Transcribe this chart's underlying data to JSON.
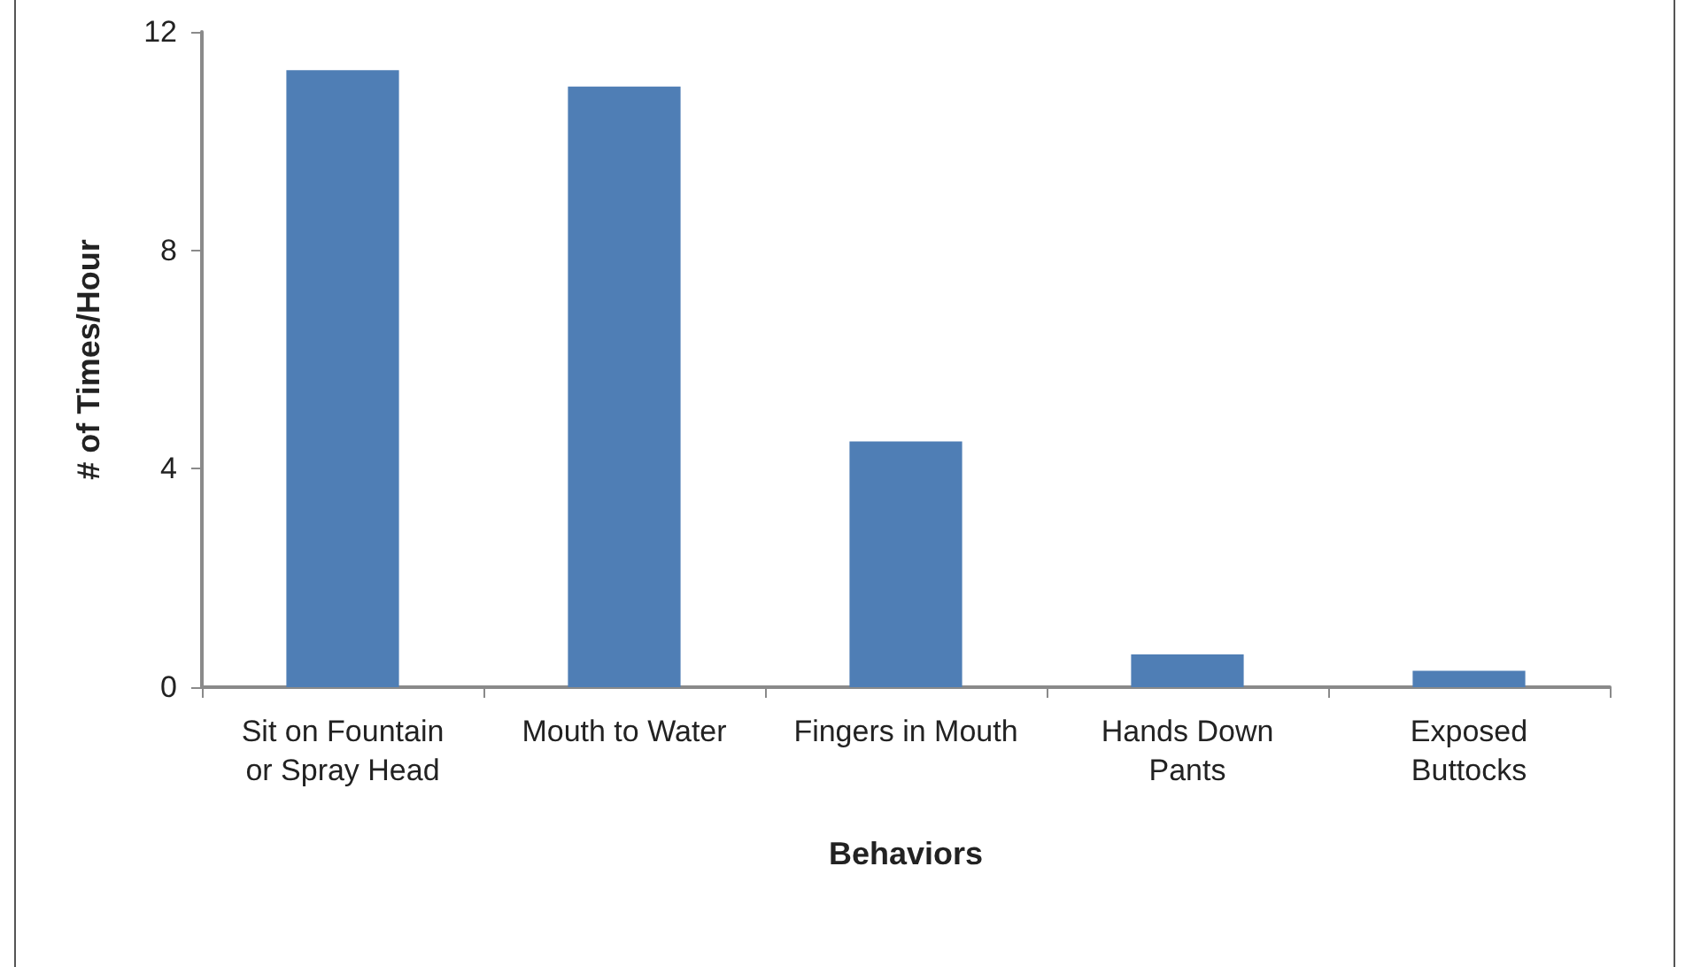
{
  "chart_data": {
    "type": "bar",
    "xlabel": "Behaviors",
    "ylabel": "# of Times/Hour",
    "categories": [
      "Sit on Fountain\nor Spray Head",
      "Mouth to Water",
      "Fingers in Mouth",
      "Hands Down\nPants",
      "Exposed\nButtocks"
    ],
    "values": [
      11.3,
      11.0,
      4.5,
      0.6,
      0.3
    ],
    "color": "#4f7eb5",
    "ylim": [
      0,
      12
    ],
    "yticks": [
      0,
      4,
      8,
      12
    ],
    "grid": false
  }
}
